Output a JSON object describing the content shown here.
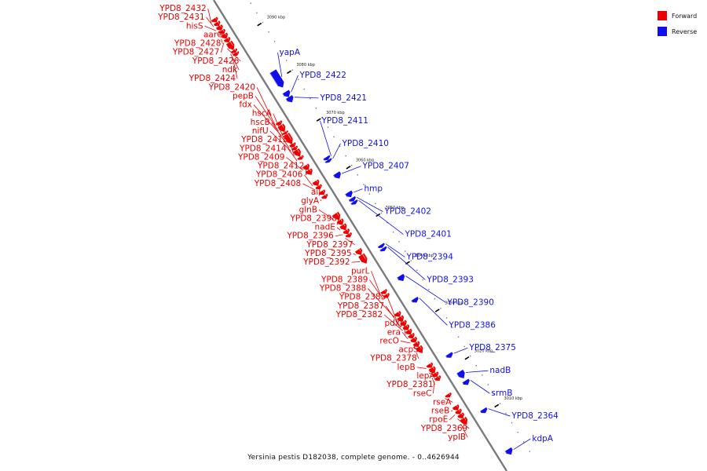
{
  "legend": {
    "forward_label": "Forward",
    "reverse_label": "Reverse",
    "forward_color": "#ee0000",
    "reverse_color": "#1010ee"
  },
  "caption": "Yersinia pestis D182038, complete genome. - 0..4626944",
  "ticks": [
    {
      "kbp": 3090,
      "label": "3090 kbp"
    },
    {
      "kbp": 3080,
      "label": "3080 kbp"
    },
    {
      "kbp": 3070,
      "label": "3070 kbp"
    },
    {
      "kbp": 3060,
      "label": "3060 kbp"
    },
    {
      "kbp": 3050,
      "label": "3050 kbp"
    },
    {
      "kbp": 3040,
      "label": "3040 kbp"
    },
    {
      "kbp": 3030,
      "label": "3030 kbp"
    },
    {
      "kbp": 3020,
      "label": "3020 kbp"
    },
    {
      "kbp": 3010,
      "label": "3010 kbp"
    }
  ],
  "forward_genes": [
    {
      "name": "YPD8_2432",
      "start": 3095.1,
      "end": 3094.4
    },
    {
      "name": "YPD8_2431",
      "start": 3094.3,
      "end": 3093.6
    },
    {
      "name": "hisS",
      "start": 3093.5,
      "end": 3092.7
    },
    {
      "name": "aarC",
      "start": 3092.6,
      "end": 3091.9
    },
    {
      "name": "YPD8_2428",
      "start": 3091.8,
      "end": 3091.0
    },
    {
      "name": "YPD8_2427",
      "start": 3090.9,
      "end": 3090.2
    },
    {
      "name": "YPD8_2426",
      "start": 3090.1,
      "end": 3088.6
    },
    {
      "name": "ndk",
      "start": 3088.5,
      "end": 3088.0
    },
    {
      "name": "YPD8_2424",
      "start": 3087.9,
      "end": 3087.4
    },
    {
      "name": "YPD8_2420",
      "start": 3073.4,
      "end": 3072.8
    },
    {
      "name": "pepB",
      "start": 3072.7,
      "end": 3071.4
    },
    {
      "name": "fdx",
      "start": 3071.3,
      "end": 3070.9
    },
    {
      "name": "hscA",
      "start": 3070.8,
      "end": 3068.9
    },
    {
      "name": "hscB",
      "start": 3068.8,
      "end": 3068.2
    },
    {
      "name": "nifU",
      "start": 3068.1,
      "end": 3067.6
    },
    {
      "name": "YPD8_2413",
      "start": 3067.5,
      "end": 3066.2
    },
    {
      "name": "YPD8_2414",
      "start": 3066.1,
      "end": 3065.6
    },
    {
      "name": "YPD8_2409",
      "start": 3064.3,
      "end": 3063.4
    },
    {
      "name": "YPD8_2412",
      "start": 3063.3,
      "end": 3062.4
    },
    {
      "name": "YPD8_2406",
      "start": 3061.0,
      "end": 3060.1
    },
    {
      "name": "YPD8_2408",
      "start": 3060.0,
      "end": 3059.4
    },
    {
      "name": "ail",
      "start": 3058.9,
      "end": 3058.2
    },
    {
      "name": "glyA",
      "start": 3058.0,
      "end": 3057.4
    },
    {
      "name": "glnB",
      "start": 3054.2,
      "end": 3052.9
    },
    {
      "name": "YPD8_2398",
      "start": 3052.8,
      "end": 3051.9
    },
    {
      "name": "nadE",
      "start": 3051.8,
      "end": 3050.8
    },
    {
      "name": "YPD8_2396",
      "start": 3050.7,
      "end": 3050.0
    },
    {
      "name": "YPD8_2397",
      "start": 3049.9,
      "end": 3049.3
    },
    {
      "name": "YPD8_2395",
      "start": 3046.6,
      "end": 3045.6
    },
    {
      "name": "YPD8_2392",
      "start": 3045.5,
      "end": 3043.8
    },
    {
      "name": "purL",
      "start": 3038.0,
      "end": 3037.4
    },
    {
      "name": "YPD8_2389",
      "start": 3037.2,
      "end": 3036.6
    },
    {
      "name": "YPD8_2388",
      "start": 3033.4,
      "end": 3032.6
    },
    {
      "name": "YPD8_2385",
      "start": 3032.5,
      "end": 3031.6
    },
    {
      "name": "YPD8_2387",
      "start": 3031.5,
      "end": 3030.7
    },
    {
      "name": "YPD8_2382",
      "start": 3030.6,
      "end": 3029.8
    },
    {
      "name": "pdxJ",
      "start": 3029.7,
      "end": 3028.9
    },
    {
      "name": "era",
      "start": 3028.8,
      "end": 3028.1
    },
    {
      "name": "recO",
      "start": 3028.0,
      "end": 3027.2
    },
    {
      "name": "acpS",
      "start": 3027.1,
      "end": 3026.3
    },
    {
      "name": "YPD8_2378",
      "start": 3026.2,
      "end": 3025.0
    },
    {
      "name": "lepB",
      "start": 3022.6,
      "end": 3021.9
    },
    {
      "name": "lepA",
      "start": 3021.8,
      "end": 3020.8
    },
    {
      "name": "YPD8_2381",
      "start": 3020.7,
      "end": 3020.0
    },
    {
      "name": "rseC",
      "start": 3019.9,
      "end": 3019.2
    },
    {
      "name": "rseA",
      "start": 3016.3,
      "end": 3015.7
    },
    {
      "name": "rseB",
      "start": 3013.8,
      "end": 3013.0
    },
    {
      "name": "rpoE",
      "start": 3012.9,
      "end": 3012.2
    },
    {
      "name": "YPD8_2369",
      "start": 3012.1,
      "end": 3011.3
    },
    {
      "name": "yplB",
      "start": 3011.2,
      "end": 3010.0
    }
  ],
  "reverse_genes": [
    {
      "name": "yapA",
      "start": 3081.6,
      "end": 3078.3
    },
    {
      "name": "YPD8_2422",
      "start": 3077.3,
      "end": 3076.3
    },
    {
      "name": "YPD8_2421",
      "start": 3076.2,
      "end": 3075.2
    },
    {
      "name": "YPD8_2411",
      "start": 3063.6,
      "end": 3063.1
    },
    {
      "name": "YPD8_2410",
      "start": 3063.0,
      "end": 3062.6
    },
    {
      "name": "YPD8_2407",
      "start": 3060.2,
      "end": 3059.2
    },
    {
      "name": "hmp",
      "start": 3056.2,
      "end": 3055.3
    },
    {
      "name": "YPD8_2402",
      "start": 3055.0,
      "end": 3054.4
    },
    {
      "name": "YPD8_2401",
      "start": 3054.3,
      "end": 3053.8
    },
    {
      "name": "YPD8_2394",
      "start": 3045.2,
      "end": 3044.7
    },
    {
      "name": "YPD8_2393",
      "start": 3044.5,
      "end": 3044.0
    },
    {
      "name": "YPD8_2390",
      "start": 3038.7,
      "end": 3037.7
    },
    {
      "name": "YPD8_2386",
      "start": 3033.9,
      "end": 3033.2
    },
    {
      "name": "YPD8_2375",
      "start": 3022.3,
      "end": 3021.6
    },
    {
      "name": "nadB",
      "start": 3018.6,
      "end": 3017.3
    },
    {
      "name": "srmB",
      "start": 3016.7,
      "end": 3015.9
    },
    {
      "name": "YPD8_2364",
      "start": 3010.7,
      "end": 3010.0
    },
    {
      "name": "kdpA",
      "start": 3002.3,
      "end": 3001.3
    }
  ]
}
